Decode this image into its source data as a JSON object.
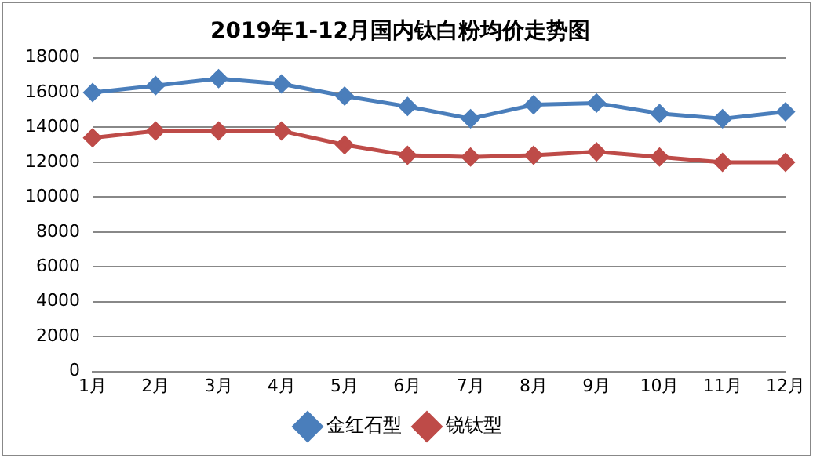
{
  "chart_data": {
    "type": "line",
    "title": "2019年1-12月国内钛白粉均价走势图",
    "categories": [
      "1月",
      "2月",
      "3月",
      "4月",
      "5月",
      "6月",
      "7月",
      "8月",
      "9月",
      "10月",
      "11月",
      "12月"
    ],
    "series": [
      {
        "name": "金红石型",
        "color": "#4a7ebb",
        "values": [
          16000,
          16400,
          16800,
          16500,
          15800,
          15200,
          14500,
          15300,
          15400,
          14800,
          14500,
          14900
        ]
      },
      {
        "name": "锐钛型",
        "color": "#be4b48",
        "values": [
          13400,
          13800,
          13800,
          13800,
          13000,
          12400,
          12300,
          12400,
          12600,
          12300,
          12000,
          12000
        ]
      }
    ],
    "ylim": [
      0,
      18000
    ],
    "yticks": [
      0,
      2000,
      4000,
      6000,
      8000,
      10000,
      12000,
      14000,
      16000,
      18000
    ],
    "grid": "y",
    "legend": "bottom",
    "marker": "diamond",
    "line_style": "solid"
  }
}
